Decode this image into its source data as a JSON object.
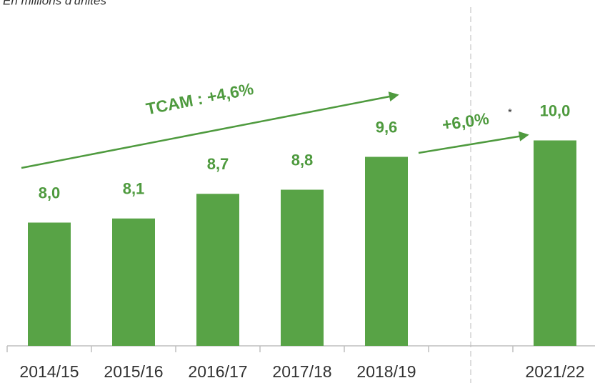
{
  "chart_data": {
    "type": "bar",
    "subtitle": "En millions d'unités",
    "categories": [
      "2014/15",
      "2015/16",
      "2016/17",
      "2017/18",
      "2018/19",
      null,
      "2021/22"
    ],
    "values": [
      8.0,
      8.1,
      8.7,
      8.8,
      9.6,
      null,
      10.0
    ],
    "value_labels": [
      "8,0",
      "8,1",
      "8,7",
      "8,8",
      "9,6",
      null,
      "10,0"
    ],
    "color": "#58a346",
    "ylim": [
      5,
      13
    ],
    "annotations": [
      "TCAM : +4,6%",
      "+6,0%",
      "*"
    ]
  }
}
